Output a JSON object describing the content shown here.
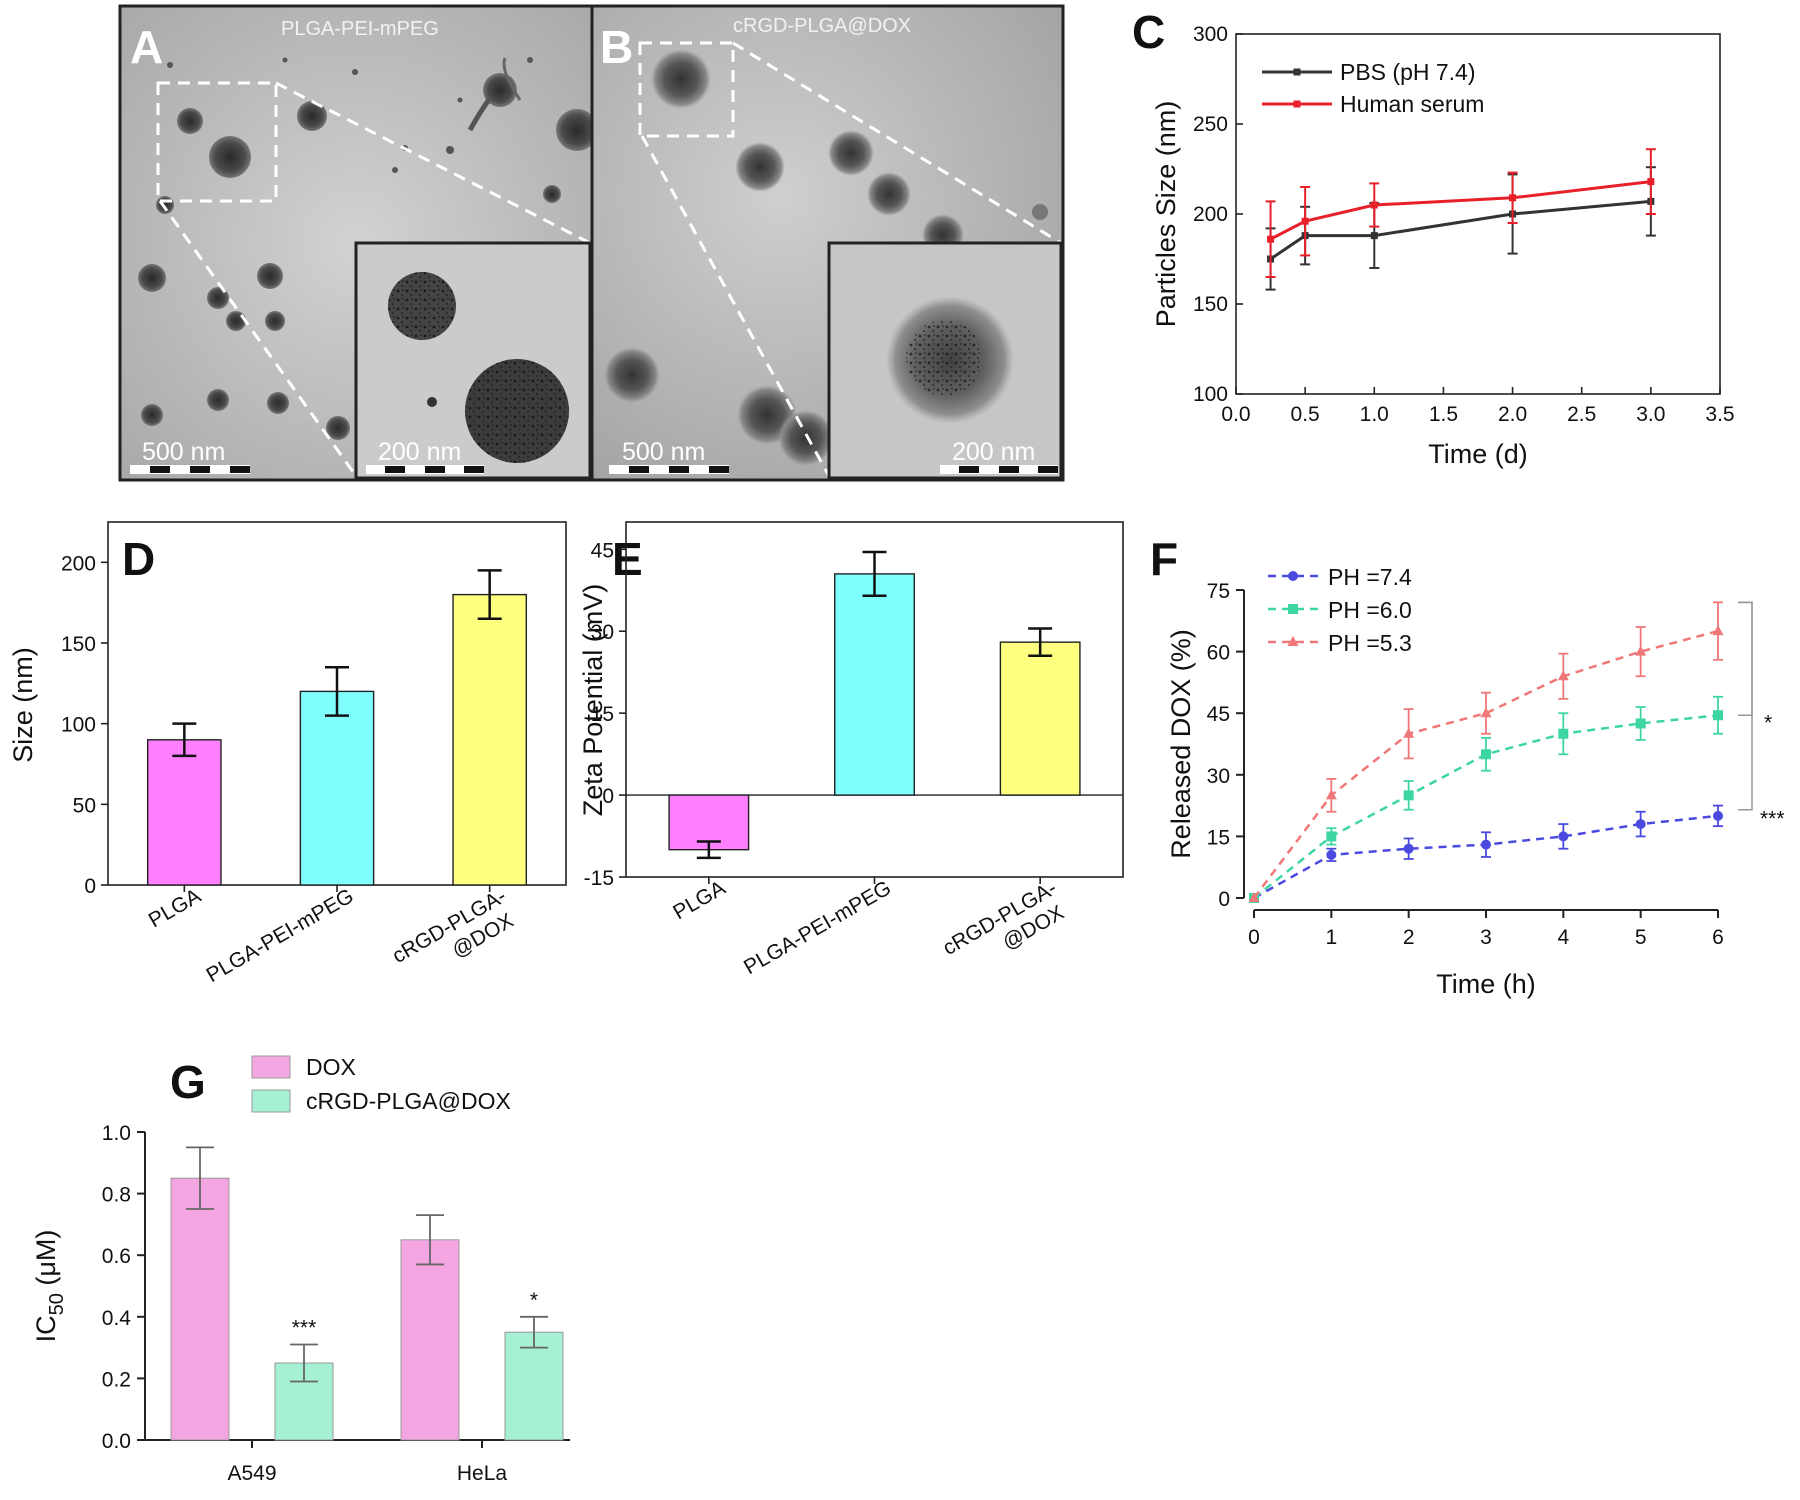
{
  "colors": {
    "magenta": "#ff80ff",
    "cyan": "#80ffff",
    "yellow": "#ffff80",
    "pbs": "#333333",
    "serum": "#e8202a",
    "ph74": "#4a4ae0",
    "ph60": "#3ed6a0",
    "ph53": "#f07878",
    "dox_pink": "#f4a6e2",
    "rgd_green": "#a6f0d4"
  },
  "panel_a": {
    "letter": "A",
    "title": "PLGA-PEI-mPEG",
    "scale_main": "500 nm",
    "scale_inset": "200 nm"
  },
  "panel_b": {
    "letter": "B",
    "title": "cRGD-PLGA@DOX",
    "scale_main": "500 nm",
    "scale_inset": "200 nm"
  },
  "chart_data": [
    {
      "panel": "C",
      "type": "line",
      "xlabel": "Time  (d)",
      "ylabel": "Particles Size  (nm)",
      "xlim": [
        0.0,
        3.5
      ],
      "ylim": [
        100,
        300
      ],
      "xticks": [
        "0.0",
        "0.5",
        "1.0",
        "1.5",
        "2.0",
        "2.5",
        "3.0",
        "3.5"
      ],
      "yticks": [
        "100",
        "150",
        "200",
        "250",
        "300"
      ],
      "legend_position": "top-left",
      "x": [
        0.25,
        0.5,
        1.0,
        2.0,
        3.0
      ],
      "series": [
        {
          "name": "PBS (pH 7.4)",
          "values": [
            175,
            188,
            188,
            200,
            207
          ],
          "errors": [
            17,
            16,
            18,
            22,
            19
          ]
        },
        {
          "name": "Human serum",
          "values": [
            186,
            196,
            205,
            209,
            218
          ],
          "errors": [
            21,
            19,
            12,
            14,
            18
          ]
        }
      ]
    },
    {
      "panel": "D",
      "type": "bar",
      "ylabel": "Size (nm)",
      "ylim": [
        0,
        225
      ],
      "yticks": [
        "0",
        "50",
        "100",
        "150",
        "200"
      ],
      "categories": [
        "PLGA",
        "PLGA-PEI-mPEG",
        "cRGD-PLGA-@DOX"
      ],
      "category_lines": [
        [
          "PLGA"
        ],
        [
          "PLGA-PEI-mPEG"
        ],
        [
          "cRGD-PLGA-",
          "@DOX"
        ]
      ],
      "values": [
        90,
        120,
        180
      ],
      "errors": [
        10,
        15,
        15
      ]
    },
    {
      "panel": "E",
      "type": "bar",
      "ylabel": "Zeta Potential (mV)",
      "ylim": [
        -15,
        50
      ],
      "yticks": [
        "-15",
        "0",
        "15",
        "30",
        "45"
      ],
      "categories": [
        "PLGA",
        "PLGA-PEI-mPEG",
        "cRGD-PLGA-@DOX"
      ],
      "category_lines": [
        [
          "PLGA"
        ],
        [
          "PLGA-PEI-mPEG"
        ],
        [
          "cRGD-PLGA-",
          "@DOX"
        ]
      ],
      "values": [
        -10,
        40.5,
        28
      ],
      "errors": [
        1.5,
        4,
        2.5
      ]
    },
    {
      "panel": "F",
      "type": "line",
      "xlabel": "Time (h)",
      "ylabel": "Released DOX (%)",
      "xlim": [
        0,
        6
      ],
      "ylim": [
        0,
        75
      ],
      "xticks": [
        "0",
        "1",
        "2",
        "3",
        "4",
        "5",
        "6"
      ],
      "yticks": [
        "0",
        "15",
        "30",
        "45",
        "60",
        "75"
      ],
      "legend_position": "top-left",
      "x": [
        0,
        1,
        2,
        3,
        4,
        5,
        6
      ],
      "series": [
        {
          "name": "PH =7.4",
          "values": [
            0,
            10.5,
            12,
            13,
            15,
            18,
            20
          ],
          "errors": [
            0,
            1.5,
            2.5,
            3,
            3,
            3,
            2.5
          ]
        },
        {
          "name": "PH =6.0",
          "values": [
            0,
            15,
            25,
            35,
            40,
            42.5,
            44.5
          ],
          "errors": [
            0,
            2,
            3.5,
            4,
            5,
            4,
            4.5
          ]
        },
        {
          "name": "PH =5.3",
          "values": [
            0,
            25,
            40,
            45,
            54,
            60,
            65
          ],
          "errors": [
            0,
            4,
            6,
            5,
            5.5,
            6,
            7
          ]
        }
      ],
      "significance": [
        "*",
        "***"
      ]
    },
    {
      "panel": "G",
      "type": "bar",
      "ylabel_main": "IC",
      "ylabel_sub": "50",
      "ylabel_unit": " (μM)",
      "ylim": [
        0,
        1.0
      ],
      "yticks": [
        "0.0",
        "0.2",
        "0.4",
        "0.6",
        "0.8",
        "1.0"
      ],
      "categories": [
        "A549",
        "HeLa"
      ],
      "series": [
        {
          "name": "DOX",
          "values": [
            0.85,
            0.65
          ],
          "errors": [
            0.1,
            0.08
          ]
        },
        {
          "name": "cRGD-PLGA@DOX",
          "values": [
            0.25,
            0.35
          ],
          "errors": [
            0.06,
            0.05
          ]
        }
      ],
      "significance": [
        "***",
        "*"
      ]
    }
  ]
}
